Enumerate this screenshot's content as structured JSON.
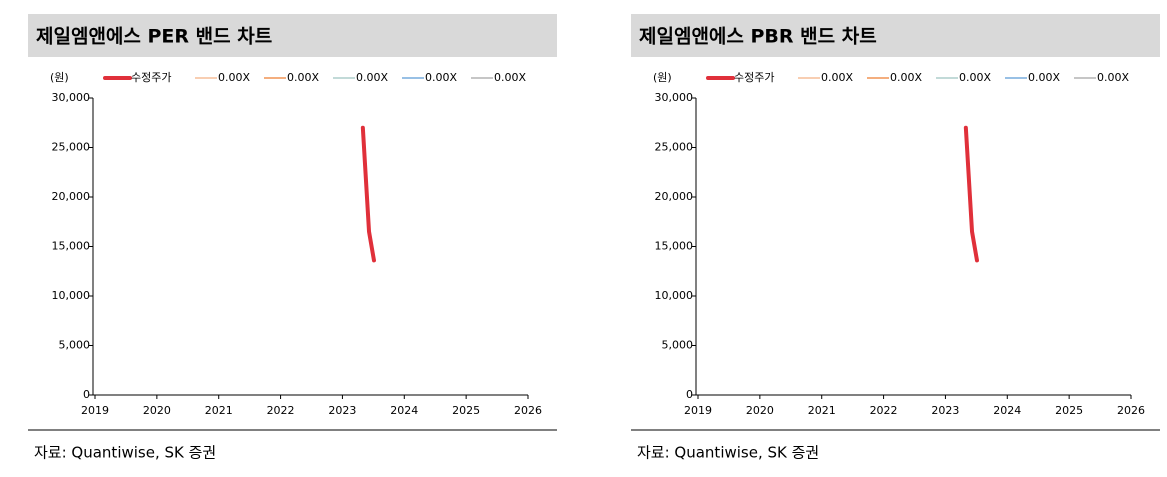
{
  "chart_data": [
    {
      "type": "line",
      "title": "제일엠앤에스 PER 밴드 차트",
      "y_label": "(원)",
      "source": "자료: Quantiwise, SK 증권",
      "x": [
        2023.33,
        2023.43,
        2023.51
      ],
      "xlim": [
        2019,
        2026
      ],
      "xticks": [
        2019,
        2020,
        2021,
        2022,
        2023,
        2024,
        2025,
        2026
      ],
      "ylim": [
        0,
        30000
      ],
      "yticks": [
        0,
        {
          "value": 5000,
          "label": "5,000"
        },
        {
          "value": 10000,
          "label": "10,000"
        },
        {
          "value": 15000,
          "label": "15,000"
        },
        {
          "value": 20000,
          "label": "20,000"
        },
        {
          "value": 25000,
          "label": "25,000"
        },
        {
          "value": 30000,
          "label": "30,000"
        }
      ],
      "series": [
        {
          "name": "수정주가",
          "color": "#e0303a",
          "values": [
            27000,
            16500,
            13600
          ]
        },
        {
          "name": "0.00X",
          "color": "#f4b183",
          "values": [
            null,
            null,
            null
          ]
        },
        {
          "name": "0.00X",
          "color": "#ed7d31",
          "values": [
            null,
            null,
            null
          ]
        },
        {
          "name": "0.00X",
          "color": "#9dc3c1",
          "values": [
            null,
            null,
            null
          ]
        },
        {
          "name": "0.00X",
          "color": "#5b9bd5",
          "values": [
            null,
            null,
            null
          ]
        },
        {
          "name": "0.00X",
          "color": "#a5a5a5",
          "values": [
            null,
            null,
            null
          ]
        }
      ]
    },
    {
      "type": "line",
      "title": "제일엠앤에스 PBR 밴드 차트",
      "y_label": "(원)",
      "source": "자료: Quantiwise, SK 증권",
      "x": [
        2023.33,
        2023.43,
        2023.51
      ],
      "xlim": [
        2019,
        2026
      ],
      "xticks": [
        2019,
        2020,
        2021,
        2022,
        2023,
        2024,
        2025,
        2026
      ],
      "ylim": [
        0,
        30000
      ],
      "yticks": [
        0,
        {
          "value": 5000,
          "label": "5,000"
        },
        {
          "value": 10000,
          "label": "10,000"
        },
        {
          "value": 15000,
          "label": "15,000"
        },
        {
          "value": 20000,
          "label": "20,000"
        },
        {
          "value": 25000,
          "label": "25,000"
        },
        {
          "value": 30000,
          "label": "30,000"
        }
      ],
      "series": [
        {
          "name": "수정주가",
          "color": "#e0303a",
          "values": [
            27000,
            16500,
            13600
          ]
        },
        {
          "name": "0.00X",
          "color": "#f4b183",
          "values": [
            null,
            null,
            null
          ]
        },
        {
          "name": "0.00X",
          "color": "#ed7d31",
          "values": [
            null,
            null,
            null
          ]
        },
        {
          "name": "0.00X",
          "color": "#9dc3c1",
          "values": [
            null,
            null,
            null
          ]
        },
        {
          "name": "0.00X",
          "color": "#5b9bd5",
          "values": [
            null,
            null,
            null
          ]
        },
        {
          "name": "0.00X",
          "color": "#a5a5a5",
          "values": [
            null,
            null,
            null
          ]
        }
      ]
    }
  ]
}
